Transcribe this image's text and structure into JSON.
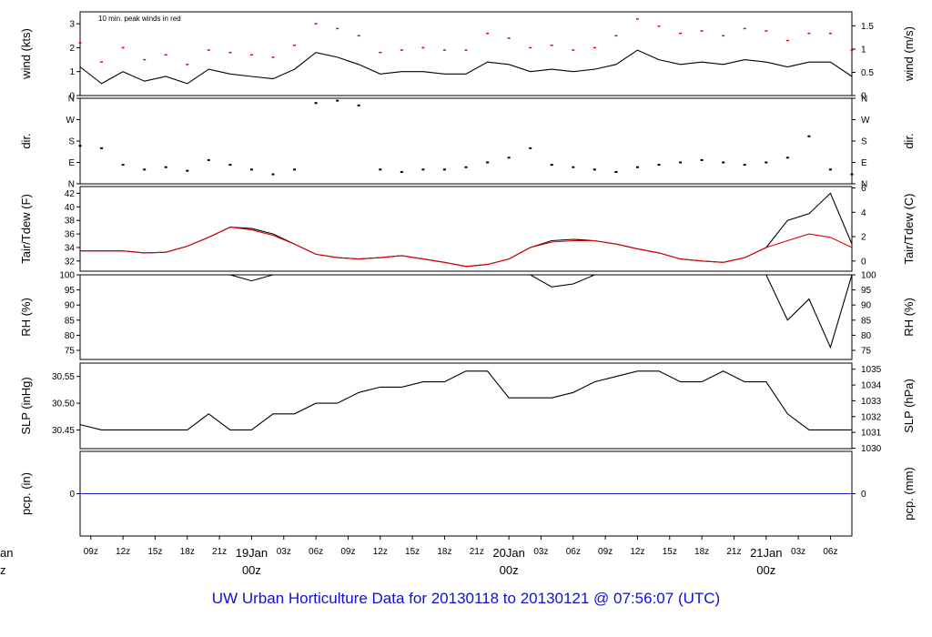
{
  "footer_title": "UW Urban Horticulture Data for 20130118  to  20130121 @ 07:56:07  (UTC)",
  "colors": {
    "axis": "#000000",
    "series": "#000000",
    "peak": "#e00000",
    "dew": "#e00000",
    "pcp": "#2020c0",
    "footer": "#1010d0"
  },
  "chart_data": [
    {
      "panel": "wind",
      "type": "line",
      "ylabel": "wind (kts)",
      "ylabel_right": "wind (m/s)",
      "ylim": [
        0,
        3.5
      ],
      "yticks": [
        0,
        1,
        2,
        3
      ],
      "yticks_right": [
        "0",
        "0.5",
        "1",
        "1.5"
      ],
      "annotation": "10 min. peak winds in red",
      "series": [
        {
          "name": "wind speed",
          "color": "#000000",
          "x": [
            0,
            2,
            4,
            6,
            8,
            10,
            12,
            14,
            16,
            18,
            20,
            22,
            24,
            26,
            28,
            30,
            32,
            34,
            36,
            38,
            40,
            42,
            44,
            46,
            48,
            50,
            52,
            54,
            56,
            58,
            60,
            62,
            64,
            66,
            68,
            70,
            72
          ],
          "values": [
            1.2,
            0.5,
            1.0,
            0.6,
            0.8,
            0.5,
            1.1,
            0.9,
            0.8,
            0.7,
            1.1,
            1.8,
            1.6,
            1.3,
            0.9,
            1.0,
            1.0,
            0.9,
            0.9,
            1.4,
            1.3,
            1.0,
            1.1,
            1.0,
            1.1,
            1.3,
            1.9,
            1.5,
            1.3,
            1.4,
            1.3,
            1.5,
            1.4,
            1.2,
            1.4,
            1.4,
            0.8
          ]
        },
        {
          "name": "10 min. peak winds",
          "color": "#e00000",
          "x": [
            0,
            2,
            4,
            6,
            8,
            10,
            12,
            14,
            16,
            18,
            20,
            22,
            24,
            26,
            28,
            30,
            32,
            34,
            36,
            38,
            40,
            42,
            44,
            46,
            48,
            50,
            52,
            54,
            56,
            58,
            60,
            62,
            64,
            66,
            68,
            70,
            72
          ],
          "values": [
            2.2,
            1.4,
            2.0,
            1.5,
            1.7,
            1.3,
            1.9,
            1.8,
            1.7,
            1.6,
            2.1,
            3.0,
            2.8,
            2.5,
            1.8,
            1.9,
            2.0,
            1.9,
            1.9,
            2.6,
            2.4,
            2.0,
            2.1,
            1.9,
            2.0,
            2.5,
            3.2,
            2.9,
            2.6,
            2.7,
            2.5,
            2.8,
            2.7,
            2.3,
            2.6,
            2.6,
            1.9
          ]
        }
      ]
    },
    {
      "panel": "dir",
      "type": "scatter",
      "ylabel": "dir.",
      "ylabel_right": "dir.",
      "ylim": [
        0,
        360
      ],
      "yticks": [
        "N",
        "E",
        "S",
        "W",
        "N"
      ],
      "series": [
        {
          "name": "wind direction",
          "x": [
            0,
            2,
            4,
            6,
            8,
            10,
            12,
            14,
            16,
            18,
            20,
            22,
            24,
            26,
            28,
            30,
            32,
            34,
            36,
            38,
            40,
            42,
            44,
            46,
            48,
            50,
            52,
            54,
            56,
            58,
            60,
            62,
            64,
            66,
            68,
            70,
            72
          ],
          "values": [
            160,
            150,
            80,
            60,
            70,
            55,
            100,
            80,
            60,
            40,
            60,
            340,
            350,
            330,
            60,
            50,
            60,
            60,
            70,
            90,
            110,
            150,
            80,
            70,
            60,
            50,
            70,
            80,
            90,
            100,
            90,
            80,
            90,
            110,
            200,
            60,
            40
          ]
        }
      ]
    },
    {
      "panel": "tair",
      "type": "line",
      "ylabel": "Tair/Tdew (F)",
      "ylabel_right": "Tair/Tdew (C)",
      "ylim": [
        30.5,
        43
      ],
      "yticks": [
        32,
        34,
        36,
        38,
        40,
        42
      ],
      "yticks_right": [
        0,
        2,
        4,
        6
      ],
      "series": [
        {
          "name": "Tair",
          "color": "#000000",
          "x": [
            0,
            2,
            4,
            6,
            8,
            10,
            12,
            14,
            16,
            18,
            20,
            22,
            24,
            26,
            28,
            30,
            32,
            34,
            36,
            38,
            40,
            42,
            44,
            46,
            48,
            50,
            52,
            54,
            56,
            58,
            60,
            62,
            64,
            66,
            68,
            70,
            72
          ],
          "values": [
            33.5,
            33.5,
            33.5,
            33.2,
            33.3,
            34.2,
            35.5,
            37.0,
            36.8,
            36.0,
            34.5,
            33.0,
            32.5,
            32.3,
            32.5,
            32.8,
            32.3,
            31.8,
            31.2,
            31.5,
            32.3,
            34.0,
            35.0,
            35.2,
            35.0,
            34.5,
            33.8,
            33.2,
            32.3,
            32.0,
            31.8,
            32.5,
            34.0,
            38.0,
            39.0,
            42.0,
            34.5
          ]
        },
        {
          "name": "Tdew",
          "color": "#e00000",
          "x": [
            0,
            2,
            4,
            6,
            8,
            10,
            12,
            14,
            16,
            18,
            20,
            22,
            24,
            26,
            28,
            30,
            32,
            34,
            36,
            38,
            40,
            42,
            44,
            46,
            48,
            50,
            52,
            54,
            56,
            58,
            60,
            62,
            64,
            66,
            68,
            70,
            72
          ],
          "values": [
            33.5,
            33.5,
            33.5,
            33.2,
            33.3,
            34.2,
            35.5,
            37.0,
            36.6,
            35.8,
            34.5,
            33.0,
            32.5,
            32.3,
            32.5,
            32.8,
            32.3,
            31.8,
            31.2,
            31.5,
            32.3,
            34.0,
            34.8,
            35.0,
            35.0,
            34.5,
            33.8,
            33.2,
            32.3,
            32.0,
            31.8,
            32.5,
            34.0,
            35.0,
            36.0,
            35.5,
            34.0
          ]
        }
      ]
    },
    {
      "panel": "rh",
      "type": "line",
      "ylabel": "RH (%)",
      "ylabel_right": "RH (%)",
      "ylim": [
        72,
        100
      ],
      "yticks": [
        75,
        80,
        85,
        90,
        95,
        100
      ],
      "yticks_right": [
        75,
        80,
        85,
        90,
        95,
        100
      ],
      "series": [
        {
          "name": "RH",
          "x": [
            0,
            2,
            4,
            6,
            8,
            10,
            12,
            14,
            16,
            18,
            20,
            22,
            24,
            26,
            28,
            30,
            32,
            34,
            36,
            38,
            40,
            42,
            44,
            46,
            48,
            50,
            52,
            54,
            56,
            58,
            60,
            62,
            64,
            66,
            68,
            70,
            72
          ],
          "values": [
            100,
            100,
            100,
            100,
            100,
            100,
            100,
            100,
            98,
            100,
            100,
            100,
            100,
            100,
            100,
            100,
            100,
            100,
            100,
            100,
            100,
            100,
            96,
            97,
            100,
            100,
            100,
            100,
            100,
            100,
            100,
            100,
            100,
            85,
            92,
            76,
            100
          ]
        }
      ]
    },
    {
      "panel": "slp",
      "type": "line",
      "ylabel": "SLP (inHg)",
      "ylabel_right": "SLP (hPa)",
      "ylim": [
        30.415,
        30.575
      ],
      "yticks": [
        "30.45",
        "30.50",
        "30.55"
      ],
      "yticks_right": [
        1030,
        1031,
        1032,
        1033,
        1034,
        1035
      ],
      "series": [
        {
          "name": "SLP",
          "x": [
            0,
            2,
            4,
            6,
            8,
            10,
            12,
            14,
            16,
            18,
            20,
            22,
            24,
            26,
            28,
            30,
            32,
            34,
            36,
            38,
            40,
            42,
            44,
            46,
            48,
            50,
            52,
            54,
            56,
            58,
            60,
            62,
            64,
            66,
            68,
            70,
            72
          ],
          "values": [
            30.46,
            30.45,
            30.45,
            30.45,
            30.45,
            30.45,
            30.48,
            30.45,
            30.45,
            30.48,
            30.48,
            30.5,
            30.5,
            30.52,
            30.53,
            30.53,
            30.54,
            30.54,
            30.56,
            30.56,
            30.51,
            30.51,
            30.51,
            30.52,
            30.54,
            30.55,
            30.56,
            30.56,
            30.54,
            30.54,
            30.56,
            30.54,
            30.54,
            30.48,
            30.45,
            30.45,
            30.45
          ]
        }
      ]
    },
    {
      "panel": "pcp",
      "type": "line",
      "ylabel": "pcp. (in)",
      "ylabel_right": "pcp. (mm)",
      "ylim": [
        -1,
        1
      ],
      "yticks": [
        "0"
      ],
      "yticks_right": [
        "0"
      ],
      "series": [
        {
          "name": "precipitation",
          "color": "#2020c0",
          "x": [
            0,
            72
          ],
          "values": [
            0,
            0
          ]
        }
      ]
    }
  ],
  "x_axis": {
    "x_range_hours": [
      0,
      72
    ],
    "ticks": [
      {
        "label": "09z",
        "h": 1
      },
      {
        "label": "12z",
        "h": 4
      },
      {
        "label": "15z",
        "h": 7
      },
      {
        "label": "18z",
        "h": 10
      },
      {
        "label": "21z",
        "h": 13
      },
      {
        "label": "03z",
        "h": 19
      },
      {
        "label": "06z",
        "h": 22
      },
      {
        "label": "09z",
        "h": 25
      },
      {
        "label": "12z",
        "h": 28
      },
      {
        "label": "15z",
        "h": 31
      },
      {
        "label": "18z",
        "h": 34
      },
      {
        "label": "21z",
        "h": 37
      },
      {
        "label": "03z",
        "h": 43
      },
      {
        "label": "06z",
        "h": 46
      },
      {
        "label": "09z",
        "h": 49
      },
      {
        "label": "12z",
        "h": 52
      },
      {
        "label": "15z",
        "h": 55
      },
      {
        "label": "18z",
        "h": 58
      },
      {
        "label": "21z",
        "h": 61
      },
      {
        "label": "03z",
        "h": 67
      },
      {
        "label": "06z",
        "h": 70
      }
    ],
    "day_marks": [
      {
        "date": "19Jan",
        "time": "00z",
        "h": 16
      },
      {
        "date": "20Jan",
        "time": "00z",
        "h": 40
      },
      {
        "date": "21Jan",
        "time": "00z",
        "h": 64
      }
    ],
    "edge_mark": {
      "date": "an",
      "time": "z"
    }
  }
}
